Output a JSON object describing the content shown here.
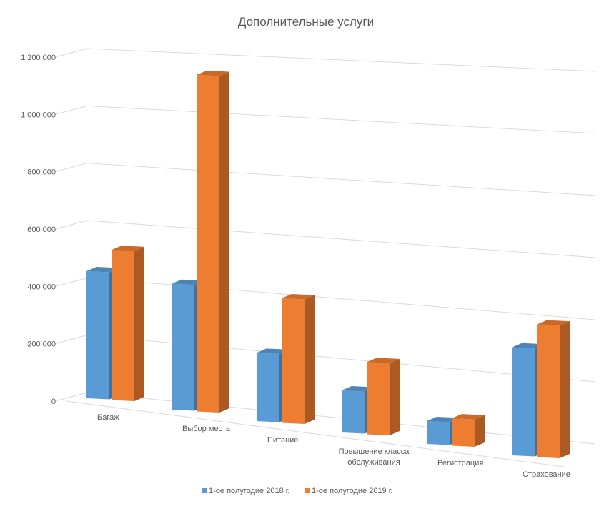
{
  "chart_data": {
    "type": "bar",
    "title": "Дополнительные услуги",
    "xlabel": "",
    "ylabel": "",
    "categories": [
      [
        "Багаж"
      ],
      [
        "Выбор места"
      ],
      [
        "Питание"
      ],
      [
        "Повышение класса",
        "обслуживания"
      ],
      [
        "Регистрация"
      ],
      [
        "Страхование"
      ]
    ],
    "series": [
      {
        "name": "1-ое полугодие 2018 г.",
        "color": "#5b9bd5",
        "values": [
          440000,
          430000,
          230000,
          140000,
          75000,
          350000
        ]
      },
      {
        "name": "1-ое полугодие 2019 г.",
        "color": "#ed7d31",
        "values": [
          520000,
          1150000,
          420000,
          240000,
          90000,
          430000
        ]
      }
    ],
    "yticks": [
      "0",
      "200 000",
      "400 000",
      "600 000",
      "800 000",
      "1 000 000",
      "1 200 000"
    ],
    "ylim": [
      0,
      1200000
    ],
    "grid": true,
    "legend_position": "bottom"
  }
}
